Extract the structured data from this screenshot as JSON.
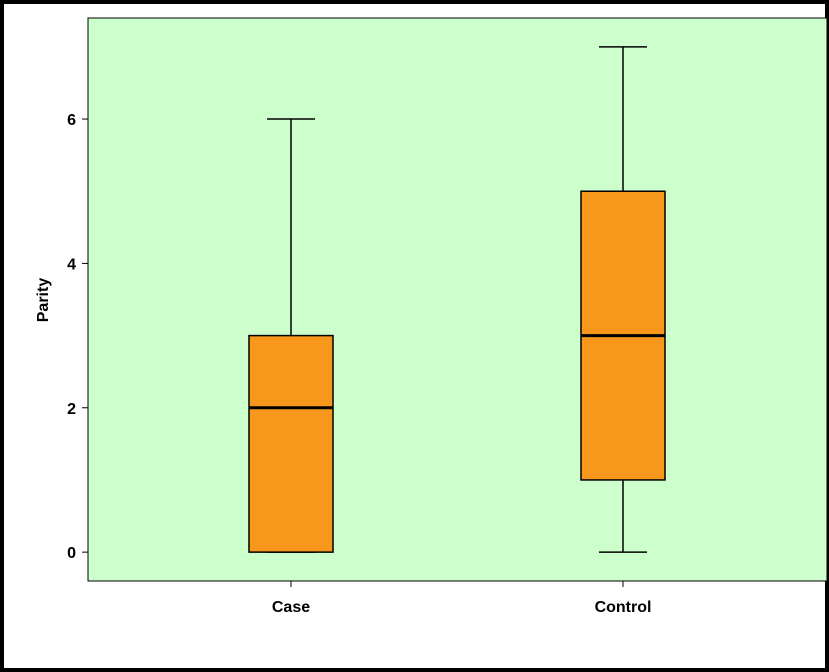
{
  "chart_data": {
    "type": "boxplot",
    "title": "",
    "xlabel": "",
    "ylabel": "Parity",
    "ylim": [
      -0.4,
      7.4
    ],
    "yticks": [
      0,
      2,
      4,
      6
    ],
    "ytick_labels": [
      "0",
      "2",
      "4",
      "6"
    ],
    "categories": [
      "Case",
      "Control"
    ],
    "boxes": [
      {
        "category": "Case",
        "min": 0,
        "q1": 0,
        "median": 2,
        "q3": 3,
        "max": 6
      },
      {
        "category": "Control",
        "min": 0,
        "q1": 1,
        "median": 3,
        "q3": 5,
        "max": 7
      }
    ],
    "grid": false,
    "legend": "none",
    "colors": {
      "plot_background": "#ccffcc",
      "box_fill": "#f7981d",
      "line": "#000000",
      "outer_border": "#000000"
    }
  }
}
